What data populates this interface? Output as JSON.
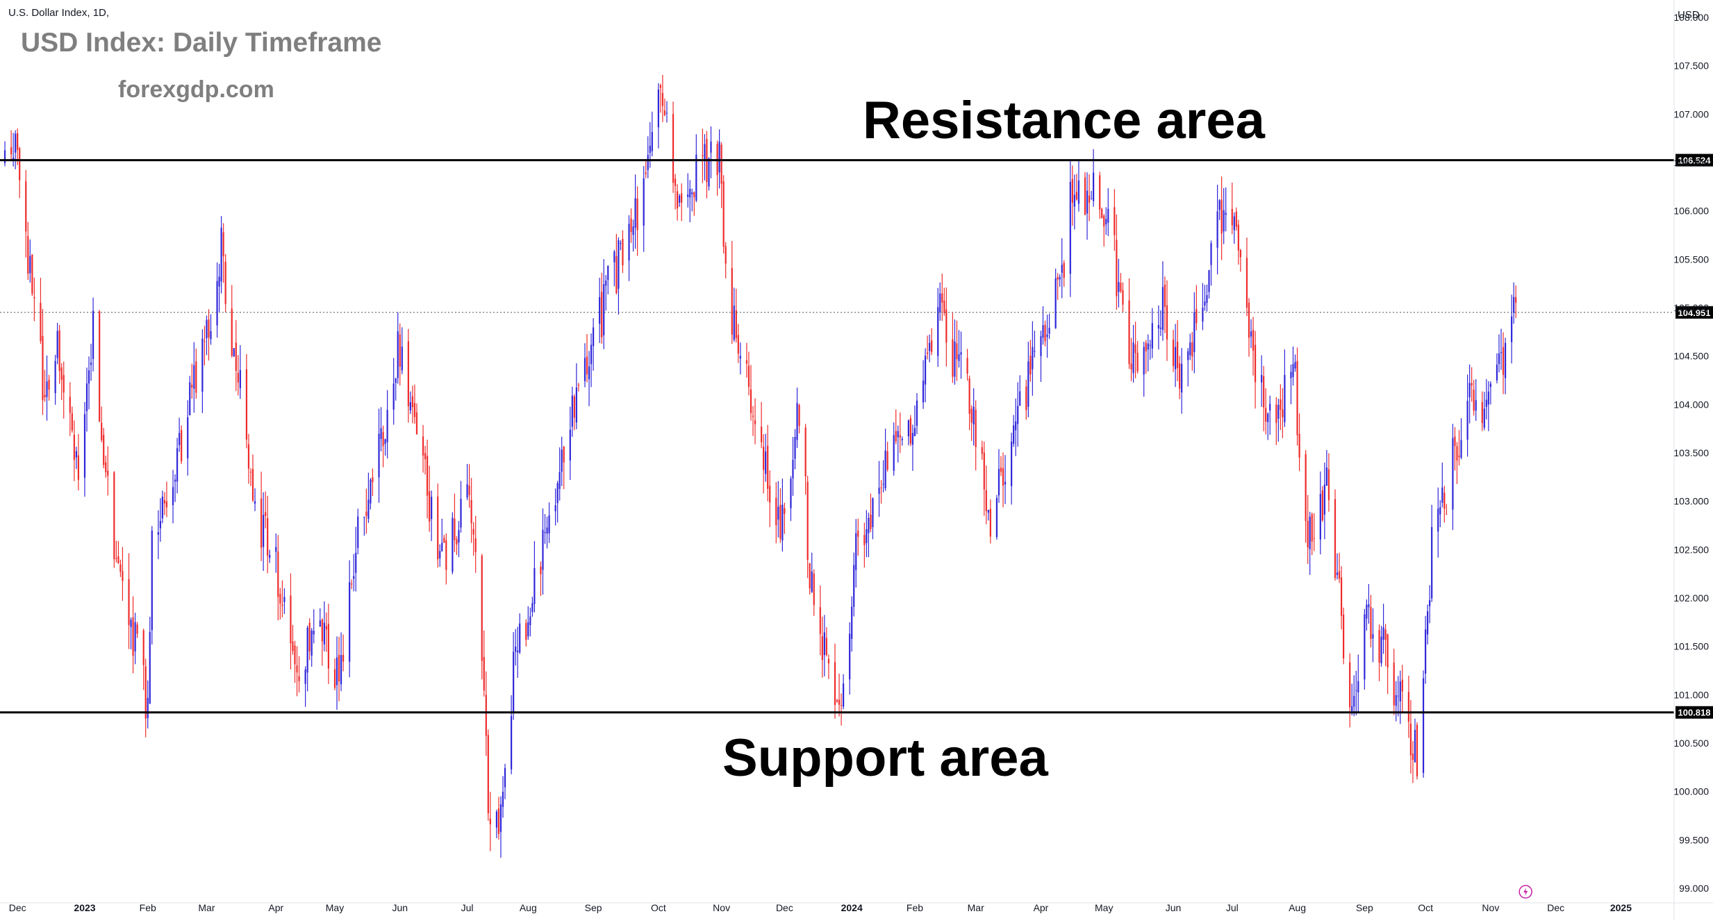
{
  "header": {
    "symbol_label": "U.S. Dollar Index, 1D,",
    "title": "USD Index: Daily Timeframe",
    "brand": "forexgdp.com",
    "currency": "USD"
  },
  "colors": {
    "up": "#2e26d9",
    "down": "#ef2b2b",
    "line": "#000000",
    "grid_dotted": "#555555",
    "price_tag_bg": "#000000",
    "price_tag_text": "#ffffff",
    "axis_text": "#131722"
  },
  "annotations": [
    {
      "label": "Resistance area",
      "level": 106.524
    },
    {
      "label": "Support area",
      "level": 100.818
    }
  ],
  "chart_data": {
    "type": "candlestick",
    "title": "USD Index: Daily Timeframe",
    "xlabel": "",
    "ylabel": "",
    "ylim": [
      98.85,
      108.15
    ],
    "grid": false,
    "y_ticks": [
      "108.000",
      "107.500",
      "107.000",
      "106.500",
      "106.000",
      "105.500",
      "105.000",
      "104.500",
      "104.000",
      "103.500",
      "103.000",
      "102.500",
      "102.000",
      "101.500",
      "101.000",
      "100.500",
      "100.000",
      "99.500",
      "99.000"
    ],
    "y_tick_values": [
      108,
      107.5,
      107,
      106.5,
      106,
      105.5,
      105,
      104.5,
      104,
      103.5,
      103,
      102.5,
      102,
      101.5,
      101,
      100.5,
      100,
      99.5,
      99
    ],
    "x_ticks": [
      {
        "label": "Dec",
        "date": "2022-12-01",
        "bold": false
      },
      {
        "label": "2023",
        "date": "2023-01-02",
        "bold": true
      },
      {
        "label": "Feb",
        "date": "2023-02-01",
        "bold": false
      },
      {
        "label": "Mar",
        "date": "2023-03-01",
        "bold": false
      },
      {
        "label": "Apr",
        "date": "2023-04-03",
        "bold": false
      },
      {
        "label": "May",
        "date": "2023-05-01",
        "bold": false
      },
      {
        "label": "Jun",
        "date": "2023-06-01",
        "bold": false
      },
      {
        "label": "Jul",
        "date": "2023-07-03",
        "bold": false
      },
      {
        "label": "Aug",
        "date": "2023-08-01",
        "bold": false
      },
      {
        "label": "Sep",
        "date": "2023-09-01",
        "bold": false
      },
      {
        "label": "Oct",
        "date": "2023-10-02",
        "bold": false
      },
      {
        "label": "Nov",
        "date": "2023-11-01",
        "bold": false
      },
      {
        "label": "Dec",
        "date": "2023-12-01",
        "bold": false
      },
      {
        "label": "2024",
        "date": "2024-01-02",
        "bold": true
      },
      {
        "label": "Feb",
        "date": "2024-02-01",
        "bold": false
      },
      {
        "label": "Mar",
        "date": "2024-03-01",
        "bold": false
      },
      {
        "label": "Apr",
        "date": "2024-04-01",
        "bold": false
      },
      {
        "label": "May",
        "date": "2024-05-01",
        "bold": false
      },
      {
        "label": "Jun",
        "date": "2024-06-03",
        "bold": false
      },
      {
        "label": "Jul",
        "date": "2024-07-01",
        "bold": false
      },
      {
        "label": "Aug",
        "date": "2024-08-01",
        "bold": false
      },
      {
        "label": "Sep",
        "date": "2024-09-02",
        "bold": false
      },
      {
        "label": "Oct",
        "date": "2024-10-01",
        "bold": false
      },
      {
        "label": "Nov",
        "date": "2024-11-01",
        "bold": false
      },
      {
        "label": "Dec",
        "date": "2024-12-02",
        "bold": false
      },
      {
        "label": "2025",
        "date": "2025-01-02",
        "bold": true
      }
    ],
    "x_range": [
      "2022-11-24",
      "2025-01-24"
    ],
    "levels": [
      {
        "name": "Resistance area",
        "value": 106.524,
        "tag": "106.524"
      },
      {
        "name": "Support area",
        "value": 100.818,
        "tag": "100.818"
      }
    ],
    "last_price": {
      "value": 104.951,
      "tag": "104.951"
    },
    "path_points": [
      [
        "2022-11-25",
        106.5
      ],
      [
        "2022-11-30",
        106.9
      ],
      [
        "2022-12-07",
        105.3
      ],
      [
        "2022-12-13",
        104.2
      ],
      [
        "2022-12-20",
        104.5
      ],
      [
        "2022-12-30",
        103.4
      ],
      [
        "2023-01-06",
        104.8
      ],
      [
        "2023-01-16",
        102.3
      ],
      [
        "2023-01-26",
        101.6
      ],
      [
        "2023-02-01",
        100.9
      ],
      [
        "2023-02-03",
        102.6
      ],
      [
        "2023-02-15",
        103.5
      ],
      [
        "2023-03-01",
        104.8
      ],
      [
        "2023-03-08",
        105.6
      ],
      [
        "2023-03-15",
        104.4
      ],
      [
        "2023-03-24",
        103.0
      ],
      [
        "2023-04-04",
        102.2
      ],
      [
        "2023-04-14",
        100.9
      ],
      [
        "2023-04-21",
        101.9
      ],
      [
        "2023-05-03",
        101.2
      ],
      [
        "2023-05-12",
        102.6
      ],
      [
        "2023-05-31",
        104.5
      ],
      [
        "2023-06-08",
        103.8
      ],
      [
        "2023-06-22",
        102.3
      ],
      [
        "2023-07-03",
        103.0
      ],
      [
        "2023-07-07",
        102.7
      ],
      [
        "2023-07-13",
        99.9
      ],
      [
        "2023-07-18",
        99.7
      ],
      [
        "2023-07-26",
        101.4
      ],
      [
        "2023-08-14",
        103.0
      ],
      [
        "2023-08-25",
        104.2
      ],
      [
        "2023-09-07",
        105.1
      ],
      [
        "2023-09-22",
        106.0
      ],
      [
        "2023-10-03",
        107.1
      ],
      [
        "2023-10-12",
        106.2
      ],
      [
        "2023-10-31",
        106.6
      ],
      [
        "2023-11-03",
        105.2
      ],
      [
        "2023-11-14",
        104.1
      ],
      [
        "2023-11-29",
        102.8
      ],
      [
        "2023-12-08",
        104.0
      ],
      [
        "2023-12-14",
        102.0
      ],
      [
        "2023-12-27",
        100.9
      ],
      [
        "2024-01-04",
        102.4
      ],
      [
        "2024-01-17",
        103.3
      ],
      [
        "2024-02-02",
        104.0
      ],
      [
        "2024-02-13",
        104.9
      ],
      [
        "2024-02-29",
        103.9
      ],
      [
        "2024-03-08",
        102.7
      ],
      [
        "2024-03-19",
        103.8
      ],
      [
        "2024-04-01",
        104.7
      ],
      [
        "2024-04-10",
        105.2
      ],
      [
        "2024-04-16",
        106.3
      ],
      [
        "2024-05-01",
        106.1
      ],
      [
        "2024-05-15",
        104.4
      ],
      [
        "2024-05-29",
        105.1
      ],
      [
        "2024-06-06",
        104.1
      ],
      [
        "2024-06-26",
        106.0
      ],
      [
        "2024-07-03",
        105.7
      ],
      [
        "2024-07-17",
        103.8
      ],
      [
        "2024-07-31",
        104.2
      ],
      [
        "2024-08-05",
        102.7
      ],
      [
        "2024-08-15",
        103.1
      ],
      [
        "2024-08-27",
        100.8
      ],
      [
        "2024-09-03",
        101.7
      ],
      [
        "2024-09-11",
        101.5
      ],
      [
        "2024-09-25",
        100.4
      ],
      [
        "2024-09-27",
        100.4
      ],
      [
        "2024-10-04",
        102.5
      ],
      [
        "2024-10-22",
        104.1
      ],
      [
        "2024-10-31",
        103.9
      ],
      [
        "2024-11-07",
        104.5
      ],
      [
        "2024-11-13",
        105.0
      ]
    ]
  }
}
